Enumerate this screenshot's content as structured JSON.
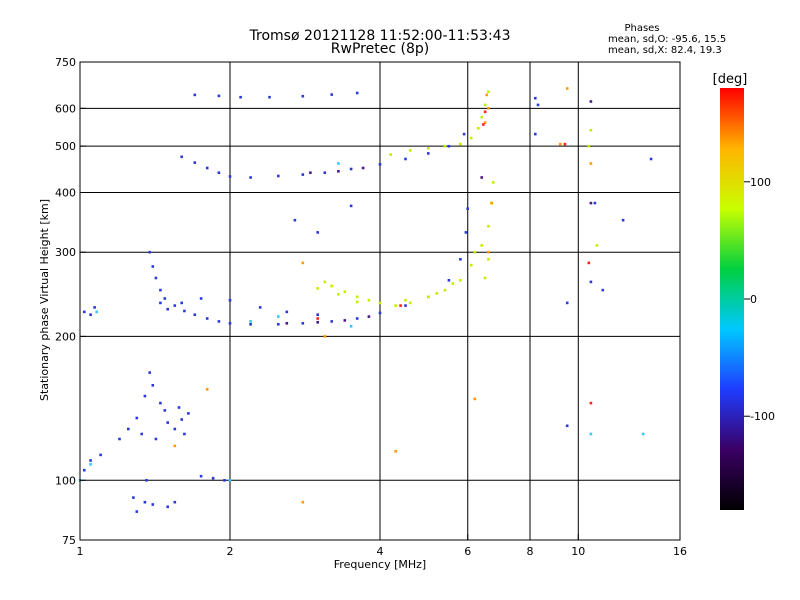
{
  "chart_data": {
    "type": "scatter",
    "title": "Tromsø 20121128 11:52:00-11:53:43",
    "subtitle": "RwPretec (8p)",
    "phase_title": "Phases",
    "phase_stats": [
      "mean, sd,O: -95.6, 15.5",
      "mean, sd,X:  82.4, 19.3"
    ],
    "xlabel": "Frequency [MHz]",
    "ylabel": "Stationary phase Virtual Height [km]",
    "x_scale": "log",
    "y_scale": "log",
    "xlim": [
      1,
      16
    ],
    "ylim": [
      75,
      750
    ],
    "x_ticks": [
      1,
      2,
      4,
      6,
      8,
      10,
      16
    ],
    "y_ticks": [
      75,
      100,
      200,
      300,
      400,
      500,
      600,
      750
    ],
    "x_grid": [
      2,
      4,
      6,
      8,
      10
    ],
    "y_grid": [
      100,
      200,
      300,
      400,
      500,
      600
    ],
    "grid": true,
    "colorbar": {
      "label": "[deg]",
      "range": [
        -180,
        180
      ],
      "ticks": [
        100,
        0,
        -100
      ],
      "colors": [
        "#000000",
        "#3a0064",
        "#1f3cff",
        "#00c8ff",
        "#00d040",
        "#c8ff00",
        "#ffb400",
        "#ff0000"
      ]
    },
    "series": [
      {
        "color": "#2a3ad8",
        "points": [
          [
            1.02,
            225
          ],
          [
            1.05,
            222
          ],
          [
            1.07,
            230
          ],
          [
            1.38,
            300
          ],
          [
            1.4,
            280
          ],
          [
            1.42,
            265
          ],
          [
            1.45,
            250
          ],
          [
            1.48,
            240
          ],
          [
            1.55,
            232
          ],
          [
            1.62,
            226
          ],
          [
            1.7,
            222
          ],
          [
            1.8,
            218
          ],
          [
            1.9,
            215
          ],
          [
            2.0,
            213
          ],
          [
            2.2,
            212
          ],
          [
            2.5,
            212
          ],
          [
            2.8,
            213
          ],
          [
            3.2,
            215
          ],
          [
            3.6,
            218
          ],
          [
            4.0,
            224
          ],
          [
            4.5,
            232
          ],
          [
            5.0,
            242
          ],
          [
            5.5,
            262
          ],
          [
            5.8,
            290
          ],
          [
            5.95,
            330
          ],
          [
            6.0,
            370
          ],
          [
            1.45,
            235
          ],
          [
            1.5,
            228
          ],
          [
            1.6,
            235
          ],
          [
            1.75,
            240
          ],
          [
            2.0,
            238
          ],
          [
            2.3,
            230
          ],
          [
            2.6,
            225
          ],
          [
            3.0,
            222
          ],
          [
            1.6,
            475
          ],
          [
            1.7,
            462
          ],
          [
            1.8,
            450
          ],
          [
            1.9,
            440
          ],
          [
            2.0,
            432
          ],
          [
            2.2,
            430
          ],
          [
            2.5,
            433
          ],
          [
            2.8,
            436
          ],
          [
            3.1,
            440
          ],
          [
            3.5,
            448
          ],
          [
            4.0,
            458
          ],
          [
            4.5,
            470
          ],
          [
            5.0,
            483
          ],
          [
            5.5,
            500
          ],
          [
            5.9,
            530
          ],
          [
            1.7,
            640
          ],
          [
            1.9,
            637
          ],
          [
            2.1,
            633
          ],
          [
            2.4,
            633
          ],
          [
            2.8,
            636
          ],
          [
            3.2,
            641
          ],
          [
            3.6,
            646
          ],
          [
            1.02,
            105
          ],
          [
            1.05,
            110
          ],
          [
            1.1,
            113
          ],
          [
            1.2,
            122
          ],
          [
            1.3,
            135
          ],
          [
            1.35,
            150
          ],
          [
            1.4,
            158
          ],
          [
            1.45,
            145
          ],
          [
            1.5,
            132
          ],
          [
            1.55,
            128
          ],
          [
            1.6,
            134
          ],
          [
            1.65,
            138
          ],
          [
            1.38,
            168
          ],
          [
            1.33,
            125
          ],
          [
            1.42,
            122
          ],
          [
            1.48,
            140
          ],
          [
            1.58,
            142
          ],
          [
            1.25,
            128
          ],
          [
            1.62,
            125
          ],
          [
            1.35,
            90
          ],
          [
            1.4,
            89
          ],
          [
            1.5,
            88
          ],
          [
            1.55,
            90
          ],
          [
            1.28,
            92
          ],
          [
            1.75,
            102
          ],
          [
            1.85,
            101
          ],
          [
            1.95,
            100
          ],
          [
            1.3,
            86
          ],
          [
            1.36,
            100
          ],
          [
            2.7,
            350
          ],
          [
            3.0,
            330
          ],
          [
            3.5,
            375
          ],
          [
            8.2,
            630
          ],
          [
            8.3,
            610
          ],
          [
            8.2,
            530
          ],
          [
            10.8,
            380
          ],
          [
            10.6,
            260
          ],
          [
            11.2,
            250
          ],
          [
            12.3,
            350
          ],
          [
            14.0,
            470
          ],
          [
            9.5,
            235
          ],
          [
            9.5,
            130
          ]
        ]
      },
      {
        "color": "#34c8ff",
        "points": [
          [
            1.0,
            100
          ],
          [
            1.05,
            108
          ],
          [
            1.08,
            225
          ],
          [
            2.0,
            100
          ],
          [
            2.2,
            215
          ],
          [
            2.5,
            220
          ],
          [
            3.5,
            210
          ],
          [
            10.6,
            125
          ],
          [
            13.5,
            125
          ],
          [
            3.3,
            460
          ]
        ]
      },
      {
        "color": "#4a1890",
        "points": [
          [
            2.6,
            213
          ],
          [
            3.0,
            214
          ],
          [
            3.4,
            216
          ],
          [
            3.8,
            220
          ],
          [
            2.9,
            440
          ],
          [
            3.3,
            443
          ],
          [
            3.7,
            450
          ],
          [
            10.6,
            620
          ],
          [
            10.6,
            380
          ],
          [
            6.4,
            430
          ]
        ]
      },
      {
        "color": "#c0f000",
        "points": [
          [
            3.0,
            252
          ],
          [
            3.1,
            260
          ],
          [
            3.2,
            255
          ],
          [
            3.4,
            248
          ],
          [
            3.6,
            242
          ],
          [
            3.8,
            238
          ],
          [
            4.0,
            235
          ],
          [
            4.3,
            232
          ],
          [
            4.6,
            235
          ],
          [
            5.0,
            242
          ],
          [
            5.4,
            250
          ],
          [
            5.8,
            262
          ],
          [
            6.1,
            282
          ],
          [
            6.4,
            310
          ],
          [
            6.6,
            340
          ],
          [
            6.7,
            380
          ],
          [
            6.75,
            420
          ],
          [
            3.3,
            245
          ],
          [
            3.6,
            236
          ],
          [
            4.5,
            238
          ],
          [
            5.2,
            246
          ],
          [
            5.6,
            258
          ],
          [
            6.2,
            300
          ],
          [
            6.5,
            265
          ],
          [
            6.6,
            290
          ],
          [
            4.2,
            480
          ],
          [
            4.6,
            490
          ],
          [
            5.0,
            495
          ],
          [
            5.4,
            500
          ],
          [
            5.8,
            505
          ],
          [
            6.1,
            520
          ],
          [
            6.3,
            545
          ],
          [
            6.4,
            575
          ],
          [
            6.5,
            610
          ],
          [
            6.6,
            650
          ],
          [
            10.6,
            540
          ],
          [
            10.9,
            310
          ],
          [
            10.5,
            500
          ]
        ]
      },
      {
        "color": "#ff9a00",
        "points": [
          [
            6.55,
            640
          ],
          [
            6.6,
            600
          ],
          [
            6.5,
            560
          ],
          [
            6.7,
            380
          ],
          [
            6.6,
            300
          ],
          [
            3.1,
            200
          ],
          [
            2.8,
            285
          ],
          [
            1.8,
            155
          ],
          [
            1.55,
            118
          ],
          [
            2.8,
            90
          ],
          [
            4.3,
            115
          ],
          [
            6.2,
            148
          ],
          [
            9.5,
            660
          ],
          [
            9.2,
            505
          ],
          [
            10.6,
            460
          ]
        ]
      },
      {
        "color": "#ff2020",
        "points": [
          [
            6.5,
            590
          ],
          [
            6.45,
            555
          ],
          [
            4.4,
            232
          ],
          [
            10.6,
            145
          ],
          [
            10.5,
            285
          ],
          [
            3.0,
            218
          ],
          [
            9.4,
            505
          ]
        ]
      }
    ]
  }
}
